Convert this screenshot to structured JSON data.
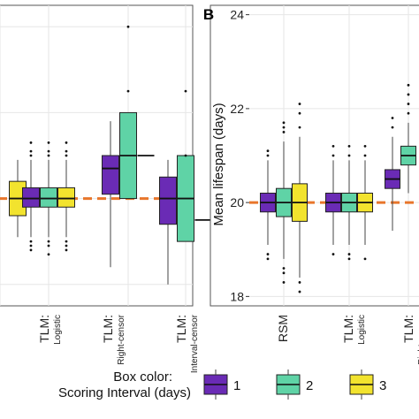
{
  "chart_data": [
    {
      "type": "box",
      "panel_label": "",
      "ylabel": "",
      "ylim": [
        17.5,
        24.5
      ],
      "y_ticks": [],
      "reference_line": 20,
      "categories": [
        {
          "label": "TLM:",
          "sublabel": "Logistic"
        },
        {
          "label": "TLM:",
          "sublabel": "Right-censor"
        },
        {
          "label": "TLM:",
          "sublabel": "Interval-censor"
        }
      ],
      "groups": [
        {
          "label": "",
          "boxes": [
            {
              "interval": 3,
              "q1": 19.6,
              "median": 20.0,
              "q3": 20.4,
              "low": 19.1,
              "high": 20.9,
              "outliers": []
            }
          ]
        },
        {
          "label": "TLM: Logistic",
          "boxes": [
            {
              "interval": 1,
              "q1": 19.8,
              "median": 20.0,
              "q3": 20.25,
              "low": 19.1,
              "high": 20.9,
              "outliers": [
                19.0,
                18.9,
                18.8,
                21.0,
                21.1,
                21.3
              ]
            },
            {
              "interval": 2,
              "q1": 19.8,
              "median": 20.0,
              "q3": 20.25,
              "low": 19.1,
              "high": 20.9,
              "outliers": [
                19.0,
                18.9,
                18.7,
                21.0,
                21.1,
                21.3
              ]
            },
            {
              "interval": 3,
              "q1": 19.8,
              "median": 20.0,
              "q3": 20.25,
              "low": 19.1,
              "high": 20.9,
              "outliers": [
                19.0,
                18.9,
                18.8,
                21.0,
                21.1,
                21.3
              ]
            }
          ]
        },
        {
          "label": "TLM: Right-censor",
          "boxes": [
            {
              "interval": 1,
              "q1": 20.1,
              "median": 20.7,
              "q3": 21.0,
              "low": 18.4,
              "high": 21.8,
              "outliers": []
            },
            {
              "interval": 2,
              "q1": 20.0,
              "median": 21.0,
              "q3": 22.0,
              "low": 20.0,
              "high": 22.0,
              "outliers": [
                22.5,
                24.0
              ]
            },
            {
              "interval": 3,
              "q1": 21.0,
              "median": 21.0,
              "q3": 21.0,
              "low": 21.0,
              "high": 21.0,
              "outliers": []
            }
          ]
        },
        {
          "label": "TLM: Interval-censor",
          "boxes": [
            {
              "interval": 1,
              "q1": 19.4,
              "median": 20.0,
              "q3": 20.5,
              "low": 18.0,
              "high": 20.9,
              "outliers": []
            },
            {
              "interval": 2,
              "q1": 19.0,
              "median": 20.0,
              "q3": 21.0,
              "low": 19.0,
              "high": 21.0,
              "outliers": [
                21.0,
                22.5
              ]
            },
            {
              "interval": 3,
              "q1": 19.5,
              "median": 19.5,
              "q3": 19.5,
              "low": 19.5,
              "high": 19.5,
              "outliers": []
            }
          ]
        }
      ]
    },
    {
      "type": "box",
      "panel_label": "B",
      "ylabel": "Mean lifespan (days)",
      "ylim": [
        17.8,
        24.2
      ],
      "y_ticks": [
        18,
        20,
        22,
        24
      ],
      "reference_line": 20,
      "categories": [
        {
          "label": "RSM",
          "sublabel": ""
        },
        {
          "label": "TLM:",
          "sublabel": "Logistic"
        },
        {
          "label": "TLM:",
          "sublabel": "Right-censor"
        }
      ],
      "groups": [
        {
          "label": "RSM",
          "boxes": [
            {
              "interval": 1,
              "q1": 19.8,
              "median": 20.0,
              "q3": 20.2,
              "low": 19.1,
              "high": 20.9,
              "outliers": [
                18.9,
                18.8,
                21.0,
                21.1
              ]
            },
            {
              "interval": 2,
              "q1": 19.7,
              "median": 20.0,
              "q3": 20.3,
              "low": 18.8,
              "high": 21.3,
              "outliers": [
                18.6,
                18.5,
                18.3,
                21.5,
                21.6,
                21.7
              ]
            },
            {
              "interval": 3,
              "q1": 19.6,
              "median": 20.0,
              "q3": 20.4,
              "low": 18.4,
              "high": 21.4,
              "outliers": [
                18.3,
                18.1,
                21.6,
                21.9,
                22.1
              ]
            }
          ]
        },
        {
          "label": "TLM: Logistic",
          "boxes": [
            {
              "interval": 1,
              "q1": 19.8,
              "median": 20.0,
              "q3": 20.2,
              "low": 19.1,
              "high": 20.9,
              "outliers": [
                18.9,
                21.0,
                21.2
              ]
            },
            {
              "interval": 2,
              "q1": 19.8,
              "median": 20.0,
              "q3": 20.2,
              "low": 19.1,
              "high": 20.9,
              "outliers": [
                18.9,
                18.8,
                21.0,
                21.2
              ]
            },
            {
              "interval": 3,
              "q1": 19.8,
              "median": 20.0,
              "q3": 20.2,
              "low": 19.1,
              "high": 20.9,
              "outliers": [
                18.8,
                21.0,
                21.2
              ]
            }
          ]
        },
        {
          "label": "TLM: Right-censor",
          "boxes": [
            {
              "interval": 1,
              "q1": 20.3,
              "median": 20.5,
              "q3": 20.7,
              "low": 19.4,
              "high": 21.4,
              "outliers": [
                21.6,
                21.8
              ]
            },
            {
              "interval": 2,
              "q1": 20.8,
              "median": 21.0,
              "q3": 21.2,
              "low": 20.2,
              "high": 21.7,
              "outliers": [
                21.9,
                22.1,
                22.3,
                22.5
              ]
            }
          ]
        }
      ]
    }
  ],
  "legend": {
    "title_line1": "Box color:",
    "title_line2": "Scoring Interval (days)",
    "items": [
      {
        "label": "1",
        "color": "#6a2bb5"
      },
      {
        "label": "2",
        "color": "#5fd3a6"
      },
      {
        "label": "3",
        "color": "#f2e32e"
      }
    ]
  },
  "colors": {
    "reference_line": "#e8762b",
    "whisker": "#444444",
    "grid": "#e6e6e6",
    "panel_border": "#555555"
  }
}
